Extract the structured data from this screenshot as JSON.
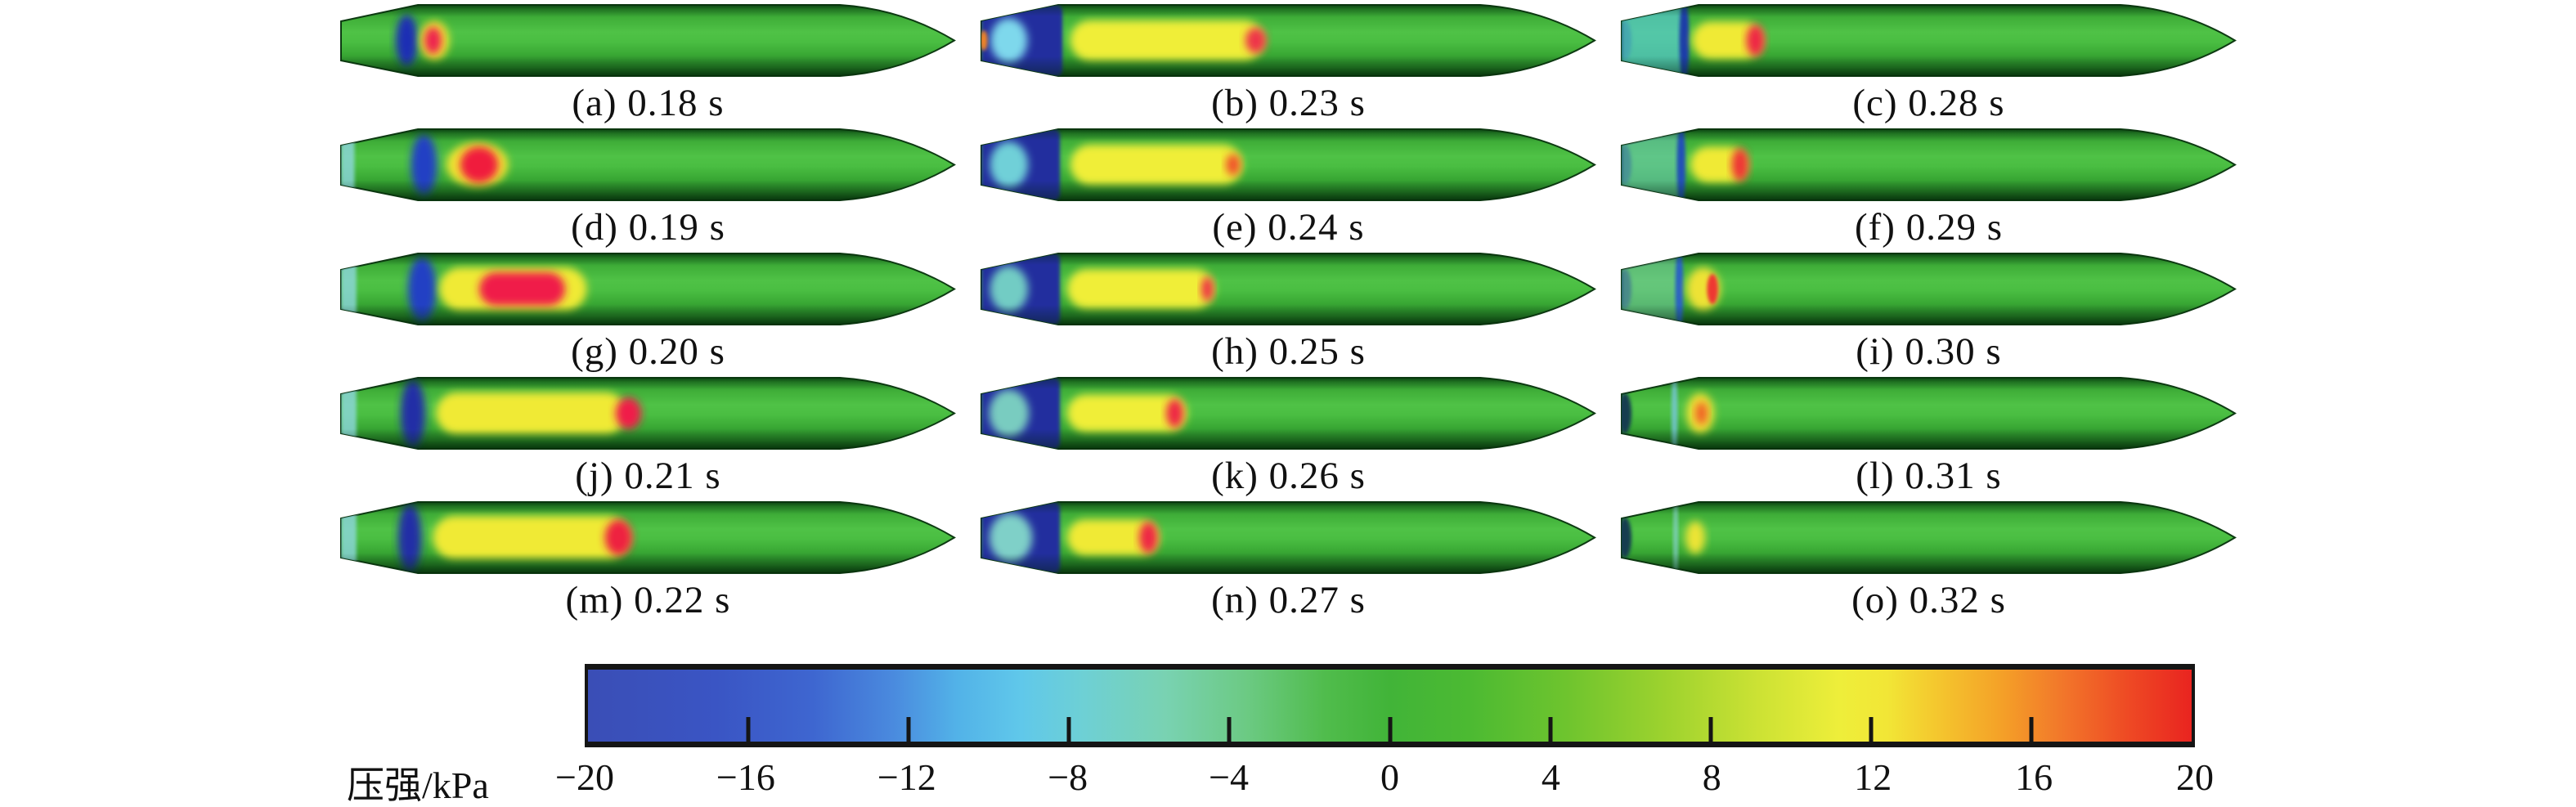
{
  "chart_data": {
    "type": "heatmap",
    "subtype": "cfd-surface-pressure-contour-sequence",
    "title": "",
    "units": "kPa",
    "colorbar": {
      "label": "压强/kPa",
      "min": -20,
      "max": 20,
      "ticks": [
        -20,
        -16,
        -12,
        -8,
        -4,
        0,
        4,
        8,
        12,
        16,
        20
      ],
      "tick_labels": [
        "−20",
        "−16",
        "−12",
        "−8",
        "−4",
        "0",
        "4",
        "8",
        "12",
        "16",
        "20"
      ],
      "gradient": [
        {
          "pos": 0,
          "color": "#3a4eb6"
        },
        {
          "pos": 8,
          "color": "#3a55c4"
        },
        {
          "pos": 14,
          "color": "#3e66d0"
        },
        {
          "pos": 19,
          "color": "#4a8ade"
        },
        {
          "pos": 23,
          "color": "#52b2e8"
        },
        {
          "pos": 27,
          "color": "#60c8ea"
        },
        {
          "pos": 31,
          "color": "#6ed0d4"
        },
        {
          "pos": 36,
          "color": "#79d2b2"
        },
        {
          "pos": 41,
          "color": "#6cca84"
        },
        {
          "pos": 46,
          "color": "#50bc4c"
        },
        {
          "pos": 50,
          "color": "#41b438"
        },
        {
          "pos": 55,
          "color": "#4cba32"
        },
        {
          "pos": 61,
          "color": "#6ec42e"
        },
        {
          "pos": 67,
          "color": "#9cd22e"
        },
        {
          "pos": 73,
          "color": "#cce234"
        },
        {
          "pos": 78,
          "color": "#eeee3a"
        },
        {
          "pos": 81,
          "color": "#f2e636"
        },
        {
          "pos": 84,
          "color": "#f4c82e"
        },
        {
          "pos": 88,
          "color": "#f4a228"
        },
        {
          "pos": 92,
          "color": "#f2762a"
        },
        {
          "pos": 96,
          "color": "#ee4a24"
        },
        {
          "pos": 100,
          "color": "#e92420"
        }
      ]
    },
    "body_colors": {
      "base_green": "#3fae38",
      "edge_dark_green": "#14581e",
      "highlight_green": "#4fc246",
      "outline": "#0d3a12"
    },
    "panels": [
      {
        "id": "a",
        "label": "(a) 0.18 s",
        "time_s": 0.18,
        "features": [
          {
            "kind": "blob",
            "x": 0.107,
            "w": 0.036,
            "h": 0.72,
            "color": "#1c2fb4"
          },
          {
            "kind": "blob",
            "x": 0.152,
            "w": 0.048,
            "h": 0.54,
            "color": "#f2e430"
          },
          {
            "kind": "blob",
            "x": 0.15,
            "w": 0.028,
            "h": 0.38,
            "color": "#ee2050"
          }
        ]
      },
      {
        "id": "b",
        "label": "(b) 0.23 s",
        "time_s": 0.23,
        "features": [
          {
            "kind": "section",
            "x0": 0,
            "x1": 0.132,
            "h": 1,
            "color": "#232e9e"
          },
          {
            "kind": "blob",
            "x": 0.045,
            "w": 0.06,
            "h": 0.62,
            "color": "#7ed8ec"
          },
          {
            "kind": "blob",
            "x": 0.004,
            "w": 0.012,
            "h": 0.28,
            "color": "#f08428"
          },
          {
            "kind": "capsule",
            "x0": 0.145,
            "x1": 0.46,
            "h": 0.56,
            "color": "#f0ee38"
          },
          {
            "kind": "blob",
            "x": 0.447,
            "w": 0.034,
            "h": 0.36,
            "color": "#ee3448"
          }
        ]
      },
      {
        "id": "c",
        "label": "(c) 0.28 s",
        "time_s": 0.28,
        "features": [
          {
            "kind": "endcap",
            "color": "#174a62"
          },
          {
            "kind": "section",
            "x0": 0,
            "x1": 0.1,
            "h": 1,
            "color": "#57c8c8",
            "opacity": 0.75
          },
          {
            "kind": "blob",
            "x": 0.102,
            "w": 0.016,
            "h": 1.2,
            "color": "#1c3ca8"
          },
          {
            "kind": "capsule",
            "x0": 0.115,
            "x1": 0.23,
            "h": 0.52,
            "color": "#f0ea34"
          },
          {
            "kind": "blob",
            "x": 0.218,
            "w": 0.03,
            "h": 0.44,
            "color": "#ee2844"
          }
        ]
      },
      {
        "id": "d",
        "label": "(d) 0.19 s",
        "time_s": 0.19,
        "features": [
          {
            "kind": "section",
            "x0": 0,
            "x1": 0.022,
            "h": 0.9,
            "color": "#8fd8e0",
            "opacity": 0.8
          },
          {
            "kind": "blob",
            "x": 0.135,
            "w": 0.042,
            "h": 0.85,
            "color": "#2440c4"
          },
          {
            "kind": "blob",
            "x": 0.222,
            "w": 0.1,
            "h": 0.62,
            "color": "#f2e430"
          },
          {
            "kind": "blob",
            "x": 0.225,
            "w": 0.062,
            "h": 0.5,
            "color": "#f01c3c"
          }
        ]
      },
      {
        "id": "e",
        "label": "(e) 0.24 s",
        "time_s": 0.24,
        "features": [
          {
            "kind": "section",
            "x0": 0,
            "x1": 0.128,
            "h": 1,
            "color": "#232e9e"
          },
          {
            "kind": "blob",
            "x": 0.045,
            "w": 0.062,
            "h": 0.64,
            "color": "#6fd0d8"
          },
          {
            "kind": "capsule",
            "x0": 0.145,
            "x1": 0.425,
            "h": 0.56,
            "color": "#f0ee38"
          },
          {
            "kind": "blob",
            "x": 0.41,
            "w": 0.024,
            "h": 0.3,
            "color": "#f0542c"
          }
        ]
      },
      {
        "id": "f",
        "label": "(f) 0.29 s",
        "time_s": 0.29,
        "features": [
          {
            "kind": "endcap",
            "color": "#174a62"
          },
          {
            "kind": "section",
            "x0": 0,
            "x1": 0.095,
            "h": 1,
            "color": "#6cc8b4",
            "opacity": 0.6
          },
          {
            "kind": "blob",
            "x": 0.097,
            "w": 0.014,
            "h": 1.2,
            "color": "#2050b8"
          },
          {
            "kind": "capsule",
            "x0": 0.112,
            "x1": 0.205,
            "h": 0.5,
            "color": "#f0ea34"
          },
          {
            "kind": "blob",
            "x": 0.193,
            "w": 0.028,
            "h": 0.46,
            "color": "#ee3434"
          }
        ]
      },
      {
        "id": "g",
        "label": "(g) 0.20 s",
        "time_s": 0.2,
        "features": [
          {
            "kind": "section",
            "x0": 0,
            "x1": 0.025,
            "h": 0.9,
            "color": "#8fd8e0",
            "opacity": 0.8
          },
          {
            "kind": "blob",
            "x": 0.132,
            "w": 0.046,
            "h": 0.9,
            "color": "#2440c4"
          },
          {
            "kind": "capsule",
            "x0": 0.16,
            "x1": 0.4,
            "h": 0.6,
            "color": "#f0ea34"
          },
          {
            "kind": "capsule",
            "x0": 0.225,
            "x1": 0.365,
            "h": 0.46,
            "color": "#f01c48"
          }
        ]
      },
      {
        "id": "h",
        "label": "(h) 0.25 s",
        "time_s": 0.25,
        "features": [
          {
            "kind": "section",
            "x0": 0,
            "x1": 0.128,
            "h": 1,
            "color": "#232e9e"
          },
          {
            "kind": "blob",
            "x": 0.045,
            "w": 0.062,
            "h": 0.64,
            "color": "#72ccc4"
          },
          {
            "kind": "capsule",
            "x0": 0.14,
            "x1": 0.38,
            "h": 0.55,
            "color": "#f0ee38"
          },
          {
            "kind": "blob",
            "x": 0.368,
            "w": 0.02,
            "h": 0.34,
            "color": "#ee3044"
          }
        ]
      },
      {
        "id": "i",
        "label": "(i) 0.30 s",
        "time_s": 0.3,
        "features": [
          {
            "kind": "endcap",
            "color": "#174a62"
          },
          {
            "kind": "section",
            "x0": 0,
            "x1": 0.092,
            "h": 1,
            "color": "#7cccb0",
            "opacity": 0.5
          },
          {
            "kind": "blob",
            "x": 0.094,
            "w": 0.013,
            "h": 1.2,
            "color": "#2a62c4"
          },
          {
            "kind": "blob",
            "x": 0.133,
            "w": 0.055,
            "h": 0.6,
            "color": "#eee234"
          },
          {
            "kind": "blob",
            "x": 0.148,
            "w": 0.018,
            "h": 0.42,
            "color": "#ee3830"
          }
        ]
      },
      {
        "id": "j",
        "label": "(j) 0.21 s",
        "time_s": 0.21,
        "features": [
          {
            "kind": "section",
            "x0": 0,
            "x1": 0.025,
            "h": 0.9,
            "color": "#8fd8e0",
            "opacity": 0.8
          },
          {
            "kind": "blob",
            "x": 0.117,
            "w": 0.04,
            "h": 0.95,
            "color": "#232ea6"
          },
          {
            "kind": "capsule",
            "x0": 0.155,
            "x1": 0.465,
            "h": 0.58,
            "color": "#f0ea34"
          },
          {
            "kind": "blob",
            "x": 0.468,
            "w": 0.042,
            "h": 0.44,
            "color": "#f01c48"
          }
        ]
      },
      {
        "id": "k",
        "label": "(k) 0.26 s",
        "time_s": 0.26,
        "features": [
          {
            "kind": "section",
            "x0": 0,
            "x1": 0.128,
            "h": 1,
            "color": "#232e9e"
          },
          {
            "kind": "blob",
            "x": 0.045,
            "w": 0.065,
            "h": 0.66,
            "color": "#79ccc0"
          },
          {
            "kind": "capsule",
            "x0": 0.14,
            "x1": 0.335,
            "h": 0.52,
            "color": "#f0ee38"
          },
          {
            "kind": "blob",
            "x": 0.315,
            "w": 0.028,
            "h": 0.4,
            "color": "#ee2844"
          }
        ]
      },
      {
        "id": "l",
        "label": "(l) 0.31 s",
        "time_s": 0.31,
        "features": [
          {
            "kind": "endcap",
            "color": "#123c50"
          },
          {
            "kind": "blob",
            "x": 0.086,
            "w": 0.01,
            "h": 1.2,
            "color": "#7ac8e0",
            "opacity": 0.8
          },
          {
            "kind": "blob",
            "x": 0.128,
            "w": 0.045,
            "h": 0.56,
            "color": "#eee234"
          },
          {
            "kind": "blob",
            "x": 0.13,
            "w": 0.02,
            "h": 0.32,
            "color": "#f06028"
          }
        ]
      },
      {
        "id": "m",
        "label": "(m) 0.22 s",
        "time_s": 0.22,
        "features": [
          {
            "kind": "section",
            "x0": 0,
            "x1": 0.025,
            "h": 0.9,
            "color": "#8fd8e0",
            "opacity": 0.8
          },
          {
            "kind": "blob",
            "x": 0.112,
            "w": 0.038,
            "h": 0.95,
            "color": "#232ea6"
          },
          {
            "kind": "capsule",
            "x0": 0.15,
            "x1": 0.47,
            "h": 0.6,
            "color": "#f0ea34"
          },
          {
            "kind": "blob",
            "x": 0.452,
            "w": 0.045,
            "h": 0.5,
            "color": "#ee2040"
          }
        ]
      },
      {
        "id": "n",
        "label": "(n) 0.27 s",
        "time_s": 0.27,
        "features": [
          {
            "kind": "section",
            "x0": 0,
            "x1": 0.128,
            "h": 1,
            "color": "#232e9e"
          },
          {
            "kind": "blob",
            "x": 0.048,
            "w": 0.07,
            "h": 0.68,
            "color": "#7fd0c8"
          },
          {
            "kind": "capsule",
            "x0": 0.14,
            "x1": 0.29,
            "h": 0.5,
            "color": "#f0ea34"
          },
          {
            "kind": "blob",
            "x": 0.272,
            "w": 0.03,
            "h": 0.44,
            "color": "#ee2844"
          }
        ]
      },
      {
        "id": "o",
        "label": "(o) 0.32 s",
        "time_s": 0.32,
        "features": [
          {
            "kind": "endcap",
            "color": "#123c50"
          },
          {
            "kind": "blob",
            "x": 0.088,
            "w": 0.008,
            "h": 1.2,
            "color": "#8fd4dc",
            "opacity": 0.7
          },
          {
            "kind": "blob",
            "x": 0.12,
            "w": 0.032,
            "h": 0.46,
            "color": "#ece434"
          }
        ]
      }
    ]
  }
}
